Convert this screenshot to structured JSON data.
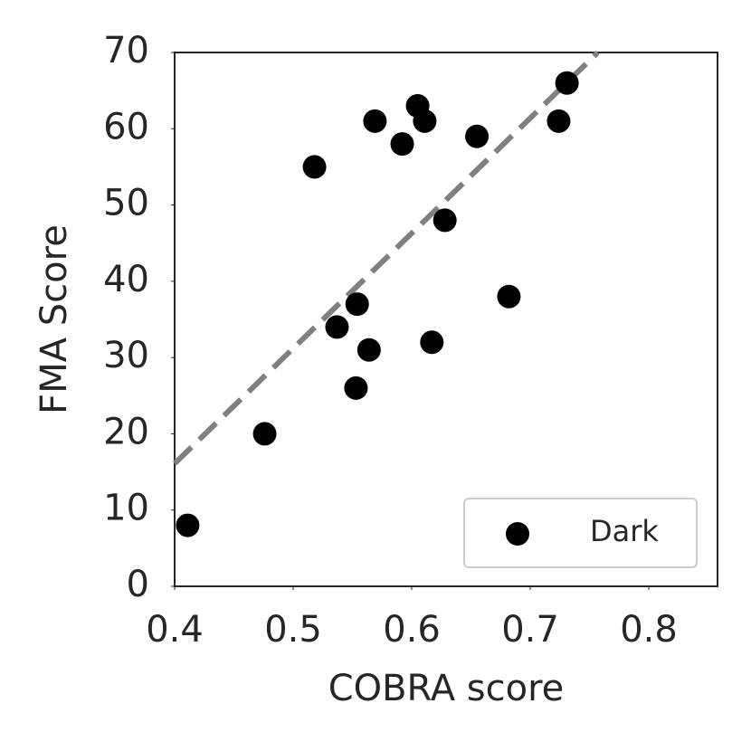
{
  "chart_data": {
    "type": "scatter",
    "x_label": "COBRA score",
    "y_label": "FMA Score",
    "series": [
      {
        "name": "Dark",
        "color": "#000000",
        "x": [
          0.411,
          0.476,
          0.518,
          0.537,
          0.554,
          0.553,
          0.564,
          0.569,
          0.592,
          0.605,
          0.611,
          0.617,
          0.628,
          0.655,
          0.682,
          0.724,
          0.731
        ],
        "values": [
          8,
          20,
          55,
          34,
          37,
          26,
          31,
          61,
          58,
          63,
          61,
          32,
          48,
          59,
          38,
          61,
          66
        ]
      }
    ],
    "trend_line": {
      "x": [
        0.4,
        0.757
      ],
      "y": [
        16.1,
        70
      ],
      "color": "#808080"
    },
    "xlim": [
      0.4,
      0.858
    ],
    "xticks": [
      0.4,
      0.5,
      0.6,
      0.7,
      0.8
    ],
    "ylim": [
      0,
      70
    ],
    "yticks": [
      0,
      10,
      20,
      30,
      40,
      50,
      60,
      70
    ],
    "legend": "lower right"
  }
}
